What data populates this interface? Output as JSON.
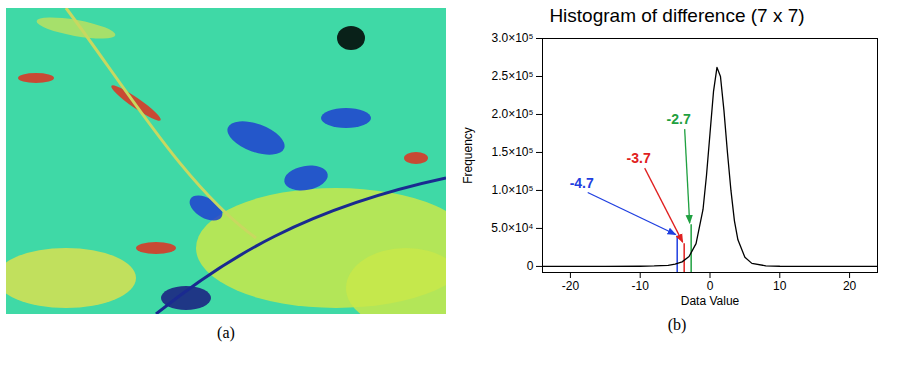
{
  "panel_labels": [
    "(a)",
    "(b)"
  ],
  "chart_data": {
    "type": "line",
    "title": "Histogram of difference (7 x 7)",
    "x_label": "Data Value",
    "y_label": "Frequency",
    "x": [
      -24,
      -20,
      -15,
      -10,
      -8,
      -6,
      -5,
      -4,
      -3,
      -2,
      -1,
      -0.5,
      0,
      0.5,
      1,
      1.5,
      2,
      2.5,
      3,
      3.5,
      4,
      5,
      6,
      8,
      10,
      15,
      20,
      24
    ],
    "values": [
      0,
      0,
      0,
      200,
      600,
      1500,
      3000,
      6000,
      13000,
      30000,
      75000,
      120000,
      175000,
      230000,
      262000,
      250000,
      205000,
      150000,
      100000,
      60000,
      35000,
      12000,
      4000,
      800,
      200,
      0,
      0,
      0
    ],
    "color": "#000000",
    "xlim": [
      -24,
      24
    ],
    "xticks": [
      -20,
      -10,
      0,
      10,
      20
    ],
    "ylim": [
      -8000,
      300000
    ],
    "yticks": [
      0,
      {
        "value": 50000,
        "label": "5.0×10⁴"
      },
      {
        "value": 100000,
        "label": "1.0×10⁵"
      },
      {
        "value": 150000,
        "label": "1.5×10⁵"
      },
      {
        "value": 200000,
        "label": "2.0×10⁵"
      },
      {
        "value": 250000,
        "label": "2.5×10⁵"
      },
      {
        "value": 300000,
        "label": "3.0×10⁵"
      }
    ],
    "annotations": [
      {
        "text": "-4.7",
        "x": -4.7,
        "y": 40000,
        "color": "#1f3fe0"
      },
      {
        "text": "-3.7",
        "x": -3.7,
        "y": 30000,
        "color": "#e02020"
      },
      {
        "text": "-2.7",
        "x": -2.7,
        "y": 55000,
        "color": "#1fa040"
      }
    ]
  }
}
